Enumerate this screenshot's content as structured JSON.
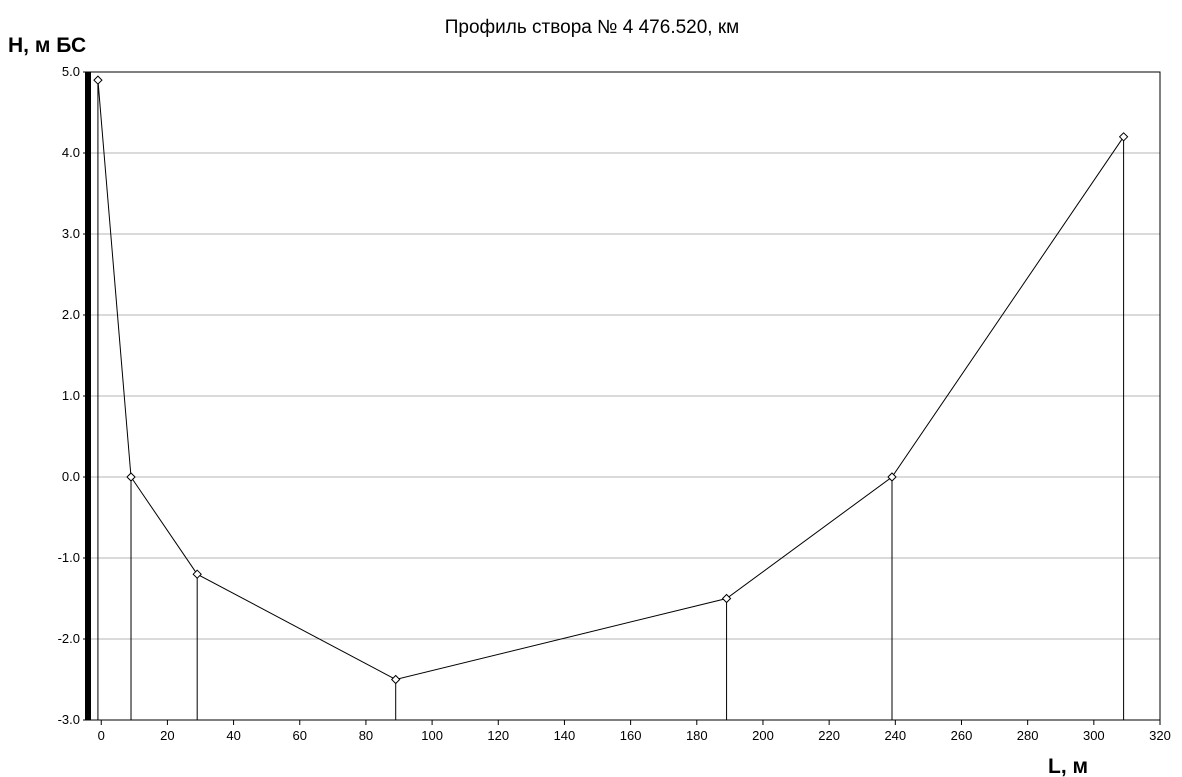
{
  "chart_data": {
    "type": "line",
    "title": "Профиль створа  № 4     476.520, км",
    "ylabel": "H, м БС",
    "xlabel": "L, м",
    "xlim": [
      -4,
      320
    ],
    "ylim": [
      -3.0,
      5.0
    ],
    "x_ticks": [
      0,
      20,
      40,
      60,
      80,
      100,
      120,
      140,
      160,
      180,
      200,
      220,
      240,
      260,
      280,
      300,
      320
    ],
    "x_tick_labels": [
      "0",
      "20",
      "40",
      "60",
      "80",
      "100",
      "120",
      "140",
      "160",
      "180",
      "200",
      "220",
      "240",
      "260",
      "280",
      "300",
      "320"
    ],
    "y_ticks": [
      5.0,
      4.0,
      3.0,
      2.0,
      1.0,
      0.0,
      -1.0,
      -2.0,
      -3.0
    ],
    "y_tick_labels": [
      "5.0",
      "4.0",
      "3.0",
      "2.0",
      "1.0",
      "0.0",
      "-1.0",
      "-2.0",
      "-3.0"
    ],
    "grid": "horizontal",
    "series": [
      {
        "points": [
          {
            "x": -1,
            "y": 4.9
          },
          {
            "x": 9,
            "y": 0.0
          },
          {
            "x": 29,
            "y": -1.2
          },
          {
            "x": 89,
            "y": -2.5
          },
          {
            "x": 189,
            "y": -1.5
          },
          {
            "x": 239,
            "y": 0.0
          },
          {
            "x": 309,
            "y": 4.2
          }
        ]
      }
    ]
  }
}
